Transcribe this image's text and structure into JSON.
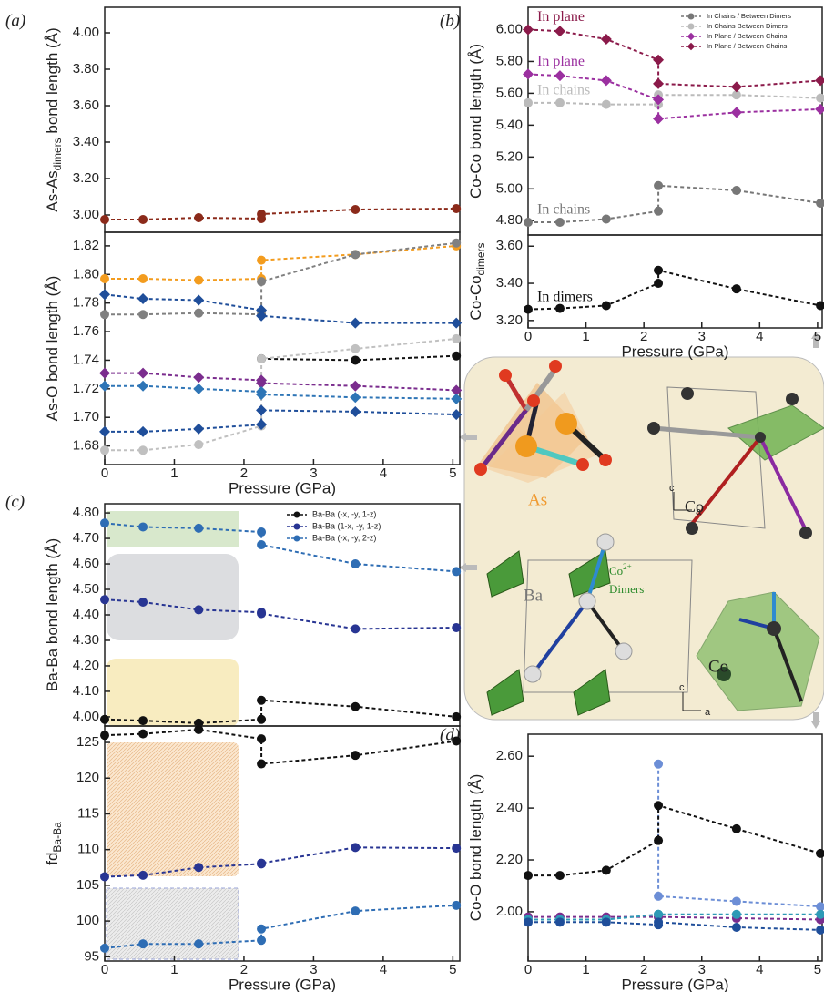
{
  "panels": [
    "(a)",
    "(b)",
    "(c)",
    "(d)"
  ],
  "structure": {
    "as": "As",
    "co_top": "Co",
    "axis_c_top": "c",
    "axis_a_top": "a",
    "ba": "Ba",
    "co_dimer": "Co",
    "co_charge": "2+",
    "dimers": "Dimers",
    "co_bottom": "Co",
    "axis_c_bottom": "c",
    "axis_a_bottom": "a"
  },
  "chart_data": [
    {
      "type": "line",
      "ylabel": [
        "As-As",
        "dimers",
        " bond length (Å)"
      ],
      "x": [
        0,
        0.55,
        1.35,
        2.25,
        2.25,
        3.6,
        5.05
      ],
      "xlim": [
        0,
        5.1
      ],
      "ylim": [
        2.905,
        4.14
      ],
      "yticks": [
        {
          "value": 3.0,
          "label": "3.00"
        },
        {
          "value": 3.2,
          "label": "3.20"
        },
        {
          "value": 3.4,
          "label": "3.40"
        },
        {
          "value": 3.6,
          "label": "3.60"
        },
        {
          "value": 3.8,
          "label": "3.80"
        },
        {
          "value": 4.0,
          "label": "4.00"
        }
      ],
      "series": [
        {
          "color": "#8b2a1a",
          "marker": "circle",
          "values": [
            2.975,
            2.975,
            2.985,
            2.98,
            3.005,
            3.03,
            3.035
          ]
        }
      ]
    },
    {
      "type": "line",
      "ylabel": [
        "As-O bond length (Å)"
      ],
      "xlabel": "Pressure (GPa)",
      "x": [
        0,
        0.55,
        1.35,
        2.25,
        2.25,
        3.6,
        5.05
      ],
      "xlim": [
        0,
        5.1
      ],
      "ylim": [
        1.667,
        1.8295
      ],
      "xticks": [
        0,
        1,
        2,
        3,
        4,
        5
      ],
      "yticks": [
        {
          "value": 1.68,
          "label": "1.68"
        },
        {
          "value": 1.7,
          "label": "1.70"
        },
        {
          "value": 1.72,
          "label": "1.72"
        },
        {
          "value": 1.74,
          "label": "1.74"
        },
        {
          "value": 1.76,
          "label": "1.76"
        },
        {
          "value": 1.78,
          "label": "1.78"
        },
        {
          "value": 1.8,
          "label": "1.80"
        },
        {
          "value": 1.82,
          "label": "1.82"
        }
      ],
      "series": [
        {
          "color": "#f39c1e",
          "marker": "circle",
          "values": [
            1.797,
            1.797,
            1.796,
            1.797,
            1.81,
            1.814,
            1.82
          ]
        },
        {
          "color": "#808080",
          "marker": "circle",
          "values": [
            1.772,
            1.772,
            1.773,
            1.772,
            1.795,
            1.814,
            1.822
          ]
        },
        {
          "color": "#1f4e9a",
          "marker": "diamond",
          "values": [
            1.786,
            1.783,
            1.782,
            1.775,
            1.771,
            1.766,
            1.766
          ]
        },
        {
          "color": "#111111",
          "marker": "circle",
          "values": [
            null,
            null,
            null,
            null,
            1.741,
            1.74,
            1.743
          ]
        },
        {
          "color": "#c0c0c0",
          "marker": "circle",
          "values": [
            1.677,
            1.677,
            1.681,
            1.694,
            1.741,
            1.748,
            1.755
          ]
        },
        {
          "color": "#7b2d8e",
          "marker": "diamond",
          "values": [
            1.731,
            1.731,
            1.728,
            1.726,
            1.724,
            1.722,
            1.719
          ]
        },
        {
          "color": "#2e75b6",
          "marker": "diamond",
          "values": [
            1.722,
            1.722,
            1.72,
            1.718,
            1.716,
            1.714,
            1.713
          ]
        },
        {
          "color": "#1f4e9a",
          "marker": "diamond",
          "values": [
            1.69,
            1.69,
            1.692,
            1.695,
            1.705,
            1.704,
            1.702
          ]
        }
      ]
    },
    {
      "type": "line",
      "ylabel": [
        "Co-Co bond length (Å)"
      ],
      "x": [
        0,
        0.55,
        1.35,
        2.25,
        2.25,
        3.6,
        5.05
      ],
      "xlim": [
        0,
        5.08
      ],
      "ylim": [
        4.71,
        6.14
      ],
      "yticks": [
        {
          "value": 4.8,
          "label": "4.80"
        },
        {
          "value": 5.0,
          "label": "5.00"
        },
        {
          "value": 5.2,
          "label": "5.20"
        },
        {
          "value": 5.4,
          "label": "5.40"
        },
        {
          "value": 5.6,
          "label": "5.60"
        },
        {
          "value": 5.8,
          "label": "5.80"
        },
        {
          "value": 6.0,
          "label": "6.00"
        }
      ],
      "series": [
        {
          "name": "In Chains / Between Dimers",
          "label": "In chains",
          "color": "#777777",
          "marker": "circle",
          "values": [
            4.79,
            4.79,
            4.81,
            4.86,
            5.02,
            4.99,
            4.91
          ]
        },
        {
          "name": "In Chains Between Dimers",
          "label": "In chains",
          "color": "#bbbbbb",
          "marker": "circle",
          "values": [
            5.54,
            5.54,
            5.53,
            5.53,
            5.59,
            5.59,
            5.57
          ]
        },
        {
          "name": "In Plane / Between Chains",
          "label": "In plane",
          "color": "#9b30a0",
          "marker": "diamond",
          "values": [
            5.72,
            5.71,
            5.68,
            5.56,
            5.44,
            5.48,
            5.5
          ]
        },
        {
          "name": "In Plane / Between Chains",
          "label": "In plane",
          "color": "#8b1a4a",
          "marker": "diamond",
          "values": [
            6.0,
            5.99,
            5.94,
            5.81,
            5.66,
            5.64,
            5.68
          ]
        }
      ]
    },
    {
      "type": "line",
      "ylabel": [
        "Co-Co",
        "dimers"
      ],
      "xlabel": "Pressure (GPa)",
      "x": [
        0,
        0.55,
        1.35,
        2.25,
        2.25,
        3.6,
        5.05
      ],
      "xlim": [
        0,
        5.08
      ],
      "ylim": [
        3.16,
        3.66
      ],
      "xticks": [
        0,
        1,
        2,
        3,
        4,
        5
      ],
      "yticks": [
        {
          "value": 3.2,
          "label": "3.20"
        },
        {
          "value": 3.4,
          "label": "3.40"
        },
        {
          "value": 3.6,
          "label": "3.60"
        }
      ],
      "series": [
        {
          "label": "In dimers",
          "color": "#111111",
          "marker": "circle",
          "values": [
            3.26,
            3.265,
            3.28,
            3.4,
            3.47,
            3.37,
            3.28
          ]
        }
      ]
    },
    {
      "type": "line",
      "ylabel": [
        "Ba-Ba bond length (Å)"
      ],
      "x": [
        0,
        0.55,
        1.35,
        2.25,
        2.25,
        3.6,
        5.05
      ],
      "xlim": [
        0,
        5.1
      ],
      "ylim": [
        3.964,
        4.836
      ],
      "yticks": [
        {
          "value": 4.0,
          "label": "4.00"
        },
        {
          "value": 4.1,
          "label": "4.10"
        },
        {
          "value": 4.2,
          "label": "4.20"
        },
        {
          "value": 4.3,
          "label": "4.30"
        },
        {
          "value": 4.4,
          "label": "4.40"
        },
        {
          "value": 4.5,
          "label": "4.50"
        },
        {
          "value": 4.6,
          "label": "4.60"
        },
        {
          "value": 4.7,
          "label": "4.70"
        },
        {
          "value": 4.8,
          "label": "4.80"
        }
      ],
      "series": [
        {
          "name": "Ba-Ba (-x, -y, 1-z)",
          "color": "#111111",
          "marker": "circle",
          "values": [
            3.99,
            3.985,
            3.975,
            3.99,
            4.065,
            4.04,
            4.0
          ]
        },
        {
          "name": "Ba-Ba (1-x, -y, 1-z)",
          "color": "#283593",
          "marker": "circle",
          "values": [
            4.46,
            4.45,
            4.42,
            4.41,
            4.405,
            4.345,
            4.35
          ]
        },
        {
          "name": "Ba-Ba (-x, -y, 2-z)",
          "color": "#2e6db4",
          "marker": "circle",
          "values": [
            4.76,
            4.745,
            4.74,
            4.725,
            4.675,
            4.6,
            4.57
          ]
        }
      ]
    },
    {
      "type": "line",
      "ylabel": [
        "fd",
        "Ba-Ba"
      ],
      "xlabel": "Pressure (GPa)",
      "x": [
        0,
        0.55,
        1.35,
        2.25,
        2.25,
        3.6,
        5.05
      ],
      "xlim": [
        0,
        5.1
      ],
      "ylim": [
        94.4,
        127.3
      ],
      "xticks": [
        0,
        1,
        2,
        3,
        4,
        5
      ],
      "yticks": [
        95,
        100,
        105,
        110,
        115,
        120,
        125
      ],
      "series": [
        {
          "color": "#111111",
          "marker": "circle",
          "values": [
            126,
            126.2,
            126.8,
            125.5,
            122,
            123.2,
            125.2
          ]
        },
        {
          "color": "#283593",
          "marker": "circle",
          "values": [
            106.2,
            106.4,
            107.5,
            108,
            108.1,
            110.3,
            110.2
          ]
        },
        {
          "color": "#2e6db4",
          "marker": "circle",
          "values": [
            96.2,
            96.8,
            96.8,
            97.3,
            98.9,
            101.4,
            102.2
          ]
        }
      ]
    },
    {
      "type": "line",
      "ylabel": [
        "Co-O bond length (Å)"
      ],
      "xlabel": "Pressure (GPa)",
      "x": [
        0,
        0.55,
        1.35,
        2.25,
        2.25,
        3.6,
        5.05
      ],
      "xlim": [
        0,
        5.08
      ],
      "ylim": [
        1.81,
        2.685
      ],
      "xticks": [
        0,
        1,
        2,
        3,
        4,
        5
      ],
      "yticks": [
        {
          "value": 2.0,
          "label": "2.00"
        },
        {
          "value": 2.2,
          "label": "2.20"
        },
        {
          "value": 2.4,
          "label": "2.40"
        },
        {
          "value": 2.6,
          "label": "2.60"
        }
      ],
      "series": [
        {
          "color": "#6c8ed6",
          "marker": "circle",
          "values": [
            null,
            null,
            null,
            2.57,
            2.06,
            2.04,
            2.02
          ]
        },
        {
          "color": "#111111",
          "marker": "circle",
          "values": [
            2.14,
            2.14,
            2.16,
            2.275,
            2.41,
            2.32,
            2.225
          ]
        },
        {
          "color": "#7b2d8e",
          "marker": "circle",
          "values": [
            1.98,
            1.98,
            1.98,
            1.98,
            1.98,
            1.975,
            1.97
          ]
        },
        {
          "color": "#2e9ab6",
          "marker": "circle",
          "values": [
            1.97,
            1.97,
            1.97,
            1.99,
            1.99,
            1.99,
            1.99
          ]
        },
        {
          "color": "#1f4e9a",
          "marker": "circle",
          "values": [
            1.96,
            1.96,
            1.96,
            1.95,
            1.96,
            1.94,
            1.93
          ]
        }
      ]
    }
  ]
}
